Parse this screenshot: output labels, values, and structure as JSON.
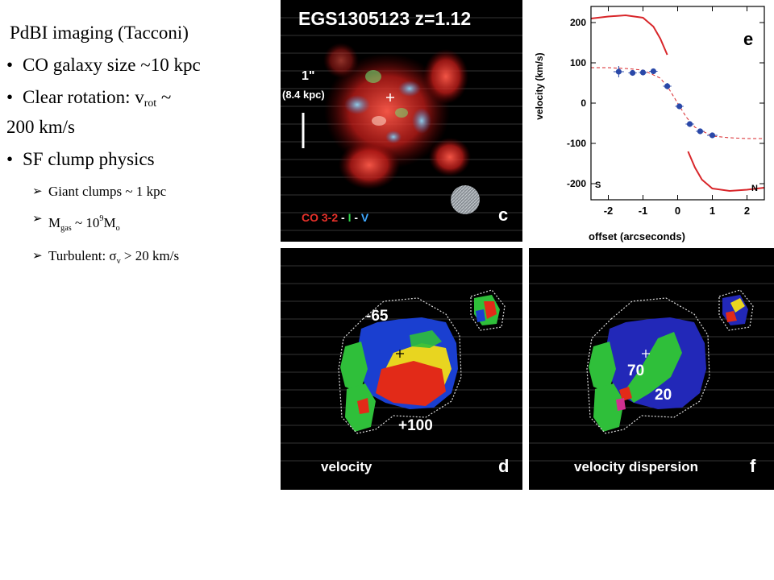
{
  "text": {
    "heading": "PdBI imaging (Tacconi)",
    "bullet_size": "CO galaxy size ~10 kpc",
    "bullet_rotation_pre": "Clear rotation: v",
    "bullet_rotation_sub": "rot",
    "bullet_rotation_post": " ~",
    "bullet_rotation_line2": "200 km/s",
    "bullet_sf": "SF clump physics",
    "sub_clumps": "Giant clumps ~ 1 kpc",
    "sub_mgas_pre": "M",
    "sub_mgas_sub": "gas",
    "sub_mgas_mid": " ~ 10",
    "sub_mgas_sup": "9",
    "sub_mgas_post": "M",
    "sub_mgas_sub2": "o",
    "sub_turb_pre": "Turbulent: σ",
    "sub_turb_sub": "v",
    "sub_turb_post": " > 20 km/s"
  },
  "panel_c": {
    "title": "EGS1305123 z=1.12",
    "scale_label": "1\"",
    "scale_kpc": "(8.4 kpc)",
    "legend_co": "CO 3-2",
    "legend_sep1": " - ",
    "legend_i": "I",
    "legend_sep2": " - ",
    "legend_v": "V",
    "letter": "c"
  },
  "panel_d": {
    "label_top": "-65",
    "label_bottom": "+100",
    "caption": "velocity",
    "letter": "d"
  },
  "panel_f": {
    "label_top": "70",
    "label_bottom": "20",
    "caption": "velocity dispersion",
    "letter": "f"
  },
  "colors": {
    "co": "#e8312a",
    "i_band": "#2fd14a",
    "v_band": "#3fa8ff",
    "curve": "#d8262a",
    "points": "#2a48a8"
  },
  "chart_data": {
    "type": "scatter",
    "xlabel": "offset (arcseconds)",
    "ylabel": "velocity (km/s)",
    "xlim": [
      -2.5,
      2.5
    ],
    "ylim": [
      -240,
      240
    ],
    "xticks": [
      -2,
      -1,
      0,
      1,
      2
    ],
    "yticks": [
      -200,
      -100,
      0,
      100,
      200
    ],
    "letter": "e",
    "label_left": "S",
    "label_right": "N",
    "points": {
      "x": [
        -1.7,
        -1.3,
        -1.0,
        -0.7,
        -0.3,
        0.05,
        0.35,
        0.65,
        1.0
      ],
      "y": [
        78,
        75,
        76,
        79,
        42,
        -8,
        -52,
        -70,
        -80
      ],
      "xerr": [
        0.15,
        0.12,
        0.12,
        0.12,
        0.12,
        0.12,
        0.12,
        0.12,
        0.15
      ],
      "yerr": [
        14,
        6,
        6,
        6,
        8,
        6,
        6,
        6,
        6
      ]
    },
    "model_dashed": {
      "x": [
        -2.5,
        -2.0,
        -1.5,
        -1.0,
        -0.5,
        -0.25,
        0.0,
        0.25,
        0.5,
        1.0,
        1.5,
        2.0,
        2.5
      ],
      "y": [
        88,
        88,
        86,
        82,
        62,
        35,
        0,
        -35,
        -60,
        -82,
        -86,
        -88,
        -88
      ]
    },
    "upper_curve": {
      "x": [
        -2.5,
        -2.0,
        -1.5,
        -1.0,
        -0.7,
        -0.5,
        -0.3
      ],
      "y": [
        210,
        215,
        218,
        212,
        190,
        160,
        120
      ]
    },
    "lower_curve": {
      "x": [
        0.3,
        0.5,
        0.7,
        1.0,
        1.5,
        2.0,
        2.5
      ],
      "y": [
        -120,
        -160,
        -190,
        -212,
        -218,
        -215,
        -210
      ]
    }
  }
}
